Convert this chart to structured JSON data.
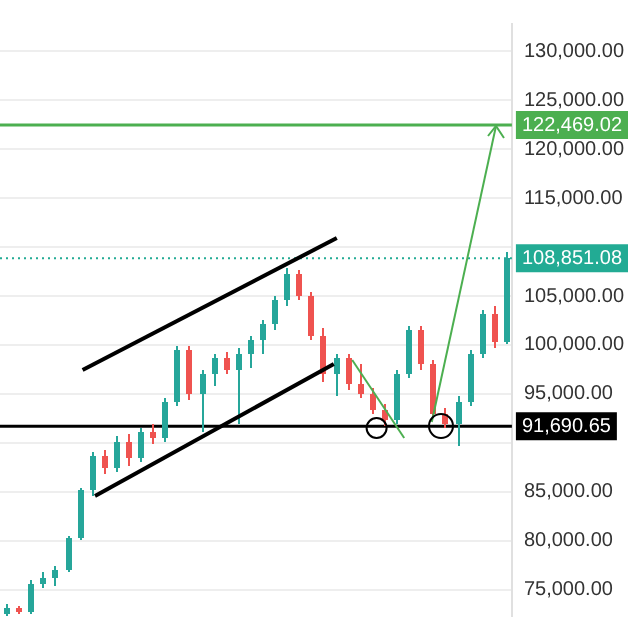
{
  "chart_data": {
    "type": "candlestick",
    "categories": [
      null,
      null,
      null,
      null,
      null,
      null,
      null,
      null,
      null,
      null,
      null,
      null,
      null,
      null,
      null,
      null,
      null,
      null,
      null,
      null,
      null,
      null,
      null,
      null,
      null,
      null,
      null,
      null,
      null,
      null,
      null,
      null,
      null,
      null,
      null,
      null,
      null,
      null,
      null,
      null,
      null,
      null
    ],
    "ohlc": [
      [
        72600,
        73600,
        72400,
        73200
      ],
      [
        73200,
        73400,
        72500,
        72700
      ],
      [
        72700,
        75900,
        72600,
        75600
      ],
      [
        75600,
        76700,
        75100,
        76100
      ],
      [
        76100,
        77400,
        75300,
        77100
      ],
      [
        77100,
        80500,
        76800,
        80200
      ],
      [
        80200,
        85400,
        80000,
        85100
      ],
      [
        85100,
        89000,
        84600,
        88600
      ],
      [
        88600,
        89300,
        86800,
        87400
      ],
      [
        87400,
        90600,
        87000,
        90100
      ],
      [
        90100,
        90800,
        87600,
        88400
      ],
      [
        88400,
        91600,
        88100,
        91100
      ],
      [
        91100,
        92000,
        89900,
        90400
      ],
      [
        90400,
        94500,
        90000,
        94100
      ],
      [
        94100,
        99900,
        93800,
        99500
      ],
      [
        99500,
        99800,
        94400,
        95000
      ],
      [
        95000,
        97500,
        91200,
        97000
      ],
      [
        97000,
        99000,
        95900,
        98600
      ],
      [
        98600,
        99200,
        97000,
        97500
      ],
      [
        97500,
        99600,
        92000,
        99000
      ],
      [
        99000,
        101000,
        97600,
        100600
      ],
      [
        100600,
        102500,
        99000,
        102100
      ],
      [
        102100,
        105000,
        101500,
        104600
      ],
      [
        104600,
        107800,
        104000,
        107200
      ],
      [
        107200,
        107600,
        104500,
        105000
      ],
      [
        105000,
        105500,
        100500,
        101000
      ],
      [
        101000,
        101800,
        96200,
        97000
      ],
      [
        97000,
        99100,
        94800,
        98600
      ],
      [
        98600,
        99000,
        95400,
        96000
      ],
      [
        96000,
        98000,
        94500,
        95000
      ],
      [
        95000,
        95600,
        92900,
        93400
      ],
      [
        93400,
        94000,
        91800,
        92400
      ],
      [
        92400,
        97500,
        92000,
        97100
      ],
      [
        97100,
        102000,
        96700,
        101600
      ],
      [
        101600,
        101900,
        97500,
        98000
      ],
      [
        98000,
        98400,
        92500,
        93000
      ],
      [
        93000,
        93600,
        91500,
        91900
      ],
      [
        91900,
        94800,
        89600,
        94200
      ],
      [
        94200,
        99500,
        93800,
        99100
      ],
      [
        99100,
        103500,
        98700,
        103100
      ],
      [
        103100,
        104000,
        99600,
        100300
      ],
      [
        100300,
        109600,
        100000,
        108851.08
      ]
    ],
    "ylim": [
      72300,
      132800
    ],
    "yticks": [
      {
        "value": 75000,
        "label": "75,000.00"
      },
      {
        "value": 80000,
        "label": "80,000.00"
      },
      {
        "value": 85000,
        "label": "85,000.00"
      },
      {
        "value": 90000,
        "label": null
      },
      {
        "value": 95000,
        "label": "95,000.00"
      },
      {
        "value": 100000,
        "label": "100,000.00"
      },
      {
        "value": 105000,
        "label": "105,000.00"
      },
      {
        "value": 110000,
        "label": null
      },
      {
        "value": 115000,
        "label": "115,000.00"
      },
      {
        "value": 120000,
        "label": "120,000.00"
      },
      {
        "value": 125000,
        "label": "125,000.00"
      },
      {
        "value": 130000,
        "label": "130,000.00"
      }
    ],
    "ref_lines": [
      {
        "axis": "y",
        "value": 122469.02,
        "label": "122,469.02",
        "color": "#4caf50",
        "line_style": "solid"
      },
      {
        "axis": "y",
        "value": 108851.08,
        "label": "108,851.08",
        "color": "#22ab94",
        "line_style": "dotted"
      },
      {
        "axis": "y",
        "value": 91690.65,
        "label": "91,690.65",
        "color": "#000000",
        "line_style": "solid"
      }
    ],
    "grid": "y",
    "tick_labels": "y",
    "legend": false
  }
}
